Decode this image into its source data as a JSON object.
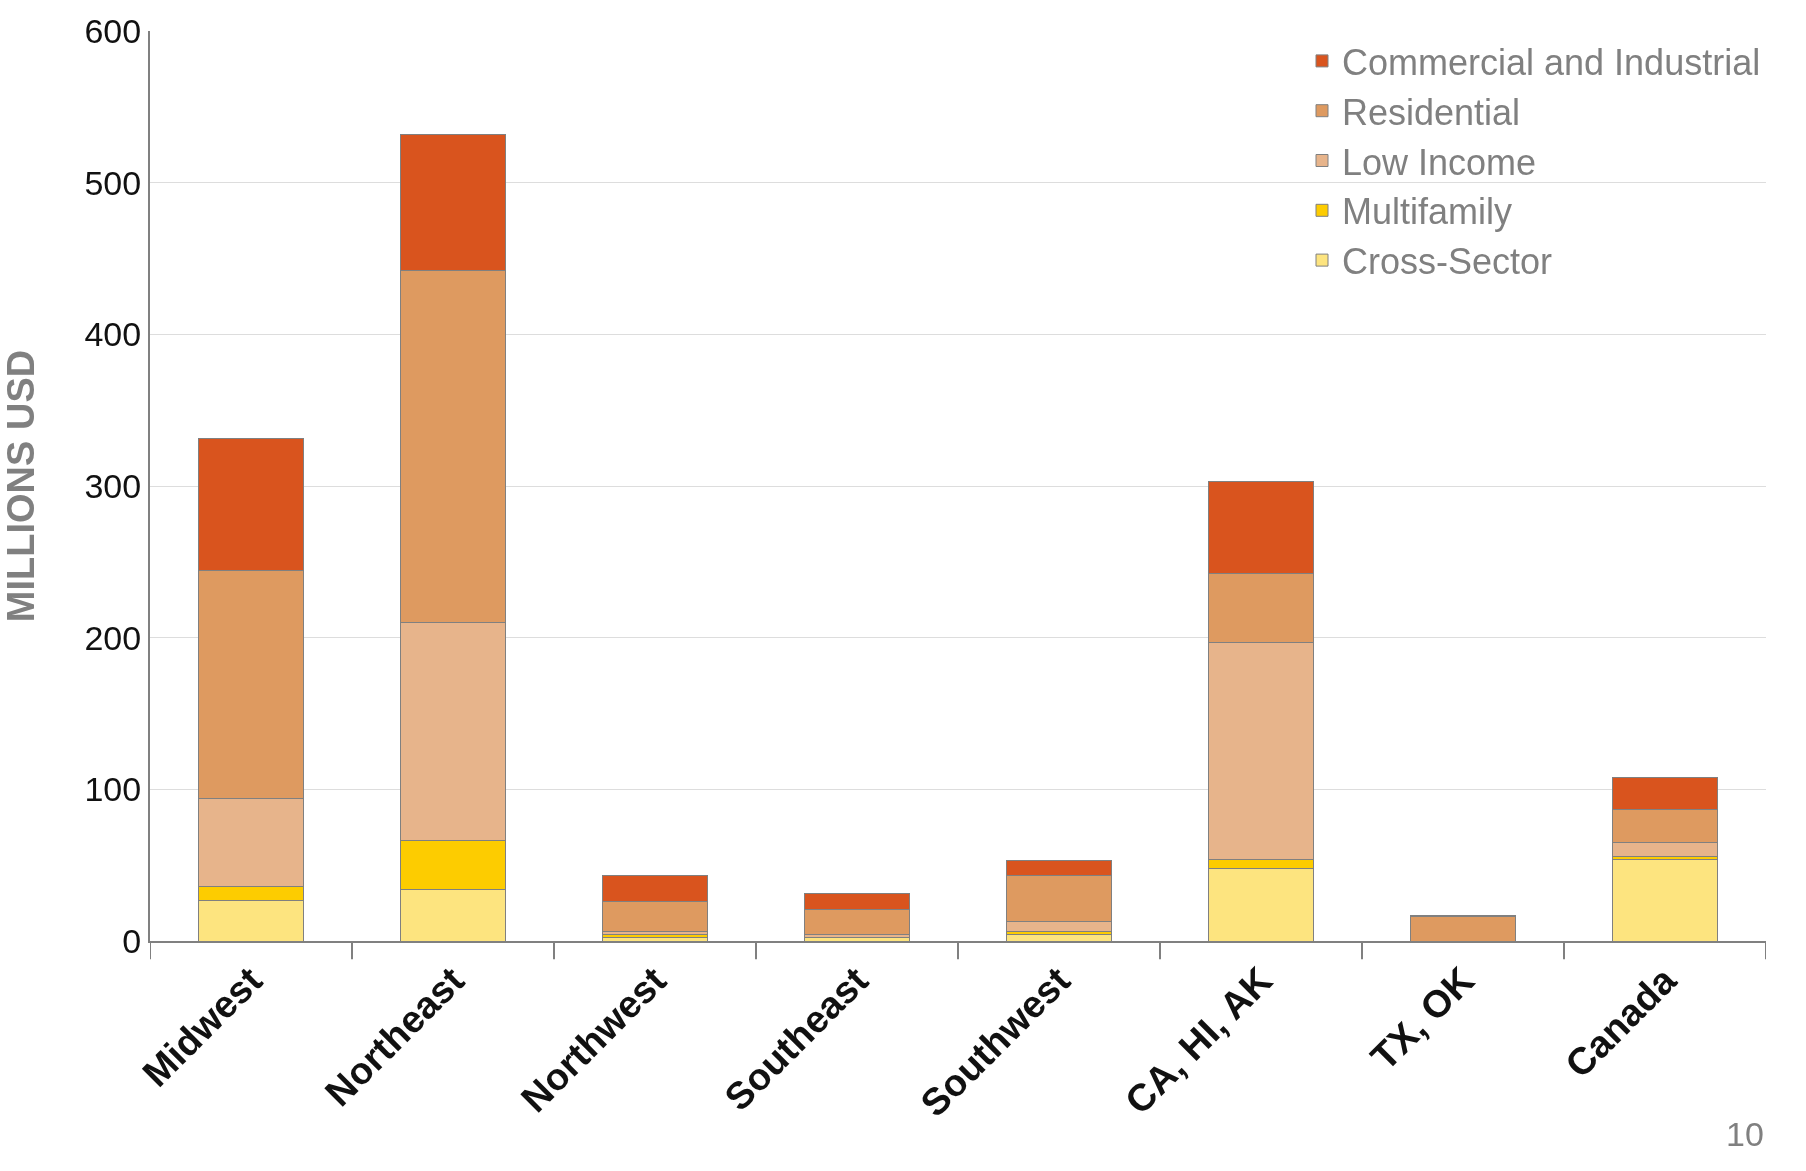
{
  "chart_data": {
    "type": "bar",
    "stacked": true,
    "ylabel": "MILLIONS USD",
    "categories": [
      "Midwest",
      "Northeast",
      "Northwest",
      "Southeast",
      "Southwest",
      "CA, HI, AK",
      "TX, OK",
      "Canada"
    ],
    "series": [
      {
        "name": "Cross-Sector",
        "color": "#fde47f",
        "values": [
          27,
          34,
          2,
          2,
          4,
          48,
          0,
          54
        ]
      },
      {
        "name": "Multifamily",
        "color": "#fdcc00",
        "values": [
          9,
          32,
          2,
          0,
          2,
          6,
          0,
          2
        ]
      },
      {
        "name": "Low Income",
        "color": "#e7b48b",
        "values": [
          58,
          144,
          2,
          2,
          7,
          143,
          0,
          9
        ]
      },
      {
        "name": "Residential",
        "color": "#de9a60",
        "values": [
          150,
          232,
          20,
          17,
          30,
          45,
          16,
          22
        ]
      },
      {
        "name": "Commercial and Industrial",
        "color": "#d9541e",
        "values": [
          87,
          90,
          17,
          10,
          10,
          61,
          1,
          21
        ]
      }
    ],
    "ylim": [
      0,
      600
    ],
    "yticks": [
      0,
      100,
      200,
      300,
      400,
      500,
      600
    ],
    "grid": "y",
    "legend": "top right",
    "annotations": [
      "10"
    ]
  }
}
